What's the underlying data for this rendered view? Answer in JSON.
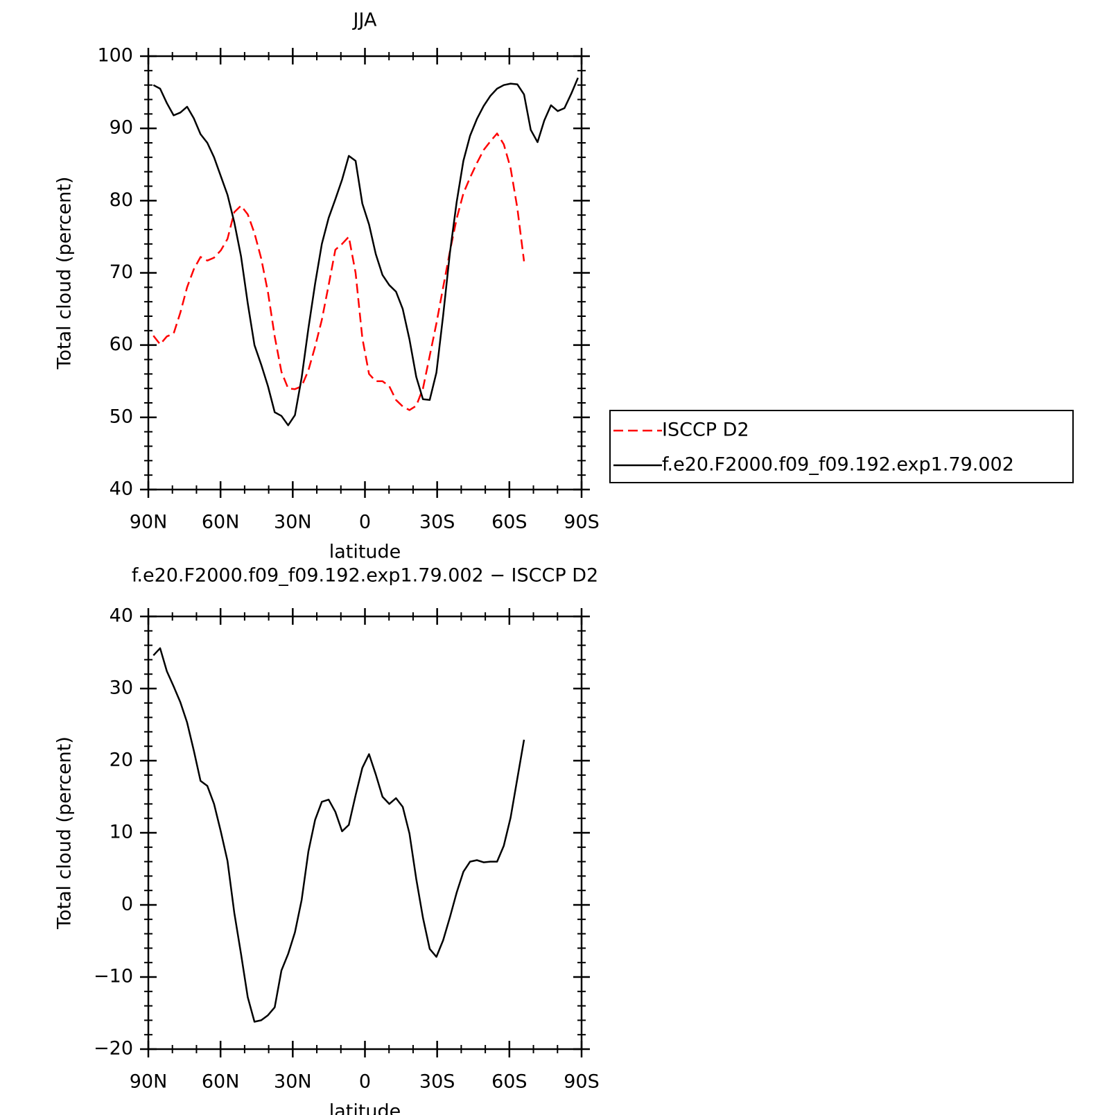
{
  "chart_data": [
    {
      "type": "line",
      "title": "JJA",
      "xlabel": "latitude",
      "ylabel": "Total cloud (percent)",
      "x": [
        87.9,
        85.1,
        82.3,
        79.5,
        76.7,
        73.9,
        71.1,
        68.3,
        65.5,
        62.7,
        59.9,
        57.1,
        54.3,
        51.5,
        48.7,
        45.9,
        43.1,
        40.3,
        37.5,
        34.7,
        31.9,
        29.1,
        26.3,
        23.5,
        20.7,
        17.9,
        15.1,
        12.3,
        9.5,
        6.7,
        3.9,
        1.1,
        -1.7,
        -4.5,
        -7.3,
        -10.1,
        -12.9,
        -15.7,
        -18.5,
        -21.3,
        -24.1,
        -26.9,
        -29.7,
        -32.5,
        -35.3,
        -38.1,
        -40.9,
        -43.7,
        -46.5,
        -49.3,
        -52.1,
        -54.9,
        -57.7,
        -60.5,
        -63.3,
        -66.1,
        -68.9,
        -71.7,
        -74.5,
        -77.3,
        -80.1,
        -82.9,
        -85.7,
        -88.5
      ],
      "series": [
        {
          "name": "ISCCP D2",
          "color": "#ff0000",
          "dashed": true,
          "values": [
            61.3,
            60.1,
            61.2,
            61.6,
            64.5,
            68.0,
            70.5,
            72.2,
            71.7,
            72.1,
            73.1,
            74.7,
            78.4,
            79.3,
            78.1,
            75.5,
            72.0,
            67.3,
            61.2,
            56.3,
            54.0,
            53.9,
            54.3,
            56.5,
            59.8,
            63.5,
            68.3,
            73.2,
            74.0,
            75.0,
            70.0,
            61.0,
            56.0,
            55.0,
            55.0,
            54.3,
            52.4,
            51.5,
            51.0,
            51.6,
            54.0,
            58.5,
            63.0,
            68.0,
            73.0,
            77.5,
            81.0,
            83.2,
            85.2,
            87.0,
            88.2,
            89.3,
            87.8,
            84.5,
            79.0,
            71.6,
            null,
            null,
            null,
            null,
            null,
            null,
            null,
            null
          ]
        },
        {
          "name": "f.e20.F2000.f09_f09.192.exp1.79.002",
          "color": "#000000",
          "dashed": false,
          "values": [
            96.0,
            95.5,
            93.5,
            91.8,
            92.2,
            93.0,
            91.4,
            89.2,
            88.0,
            86.0,
            83.4,
            80.8,
            77.0,
            72.3,
            65.8,
            60.0,
            57.3,
            54.3,
            50.7,
            50.2,
            48.9,
            50.3,
            55.5,
            62.3,
            68.5,
            74.0,
            77.6,
            80.2,
            82.9,
            86.2,
            85.5,
            79.6,
            76.7,
            72.6,
            69.7,
            68.3,
            67.4,
            65.0,
            60.8,
            55.6,
            52.5,
            52.4,
            56.2,
            64.1,
            72.8,
            79.8,
            85.5,
            89.0,
            91.3,
            93.1,
            94.5,
            95.5,
            96.0,
            96.2,
            96.1,
            94.7,
            89.8,
            88.1,
            91.1,
            93.2,
            92.4,
            92.8,
            94.8,
            97.0
          ]
        }
      ],
      "xlim": [
        90,
        -90
      ],
      "xticks": [
        {
          "value": 90,
          "label": "90N"
        },
        {
          "value": 60,
          "label": "60N"
        },
        {
          "value": 30,
          "label": "30N"
        },
        0,
        {
          "value": -30,
          "label": "30S"
        },
        {
          "value": -60,
          "label": "60S"
        },
        {
          "value": -90,
          "label": "90S"
        }
      ],
      "ylim": [
        40,
        100
      ],
      "yticks": [
        40,
        50,
        60,
        70,
        80,
        90,
        100
      ],
      "legend": "right"
    },
    {
      "type": "line",
      "title": "f.e20.F2000.f09_f09.192.exp1.79.002 − ISCCP D2",
      "xlabel": "latitude",
      "ylabel": "Total cloud (percent)",
      "x": [
        87.9,
        85.1,
        82.3,
        79.5,
        76.7,
        73.9,
        71.1,
        68.3,
        65.5,
        62.7,
        59.9,
        57.1,
        54.3,
        51.5,
        48.7,
        45.9,
        43.1,
        40.3,
        37.5,
        34.7,
        31.9,
        29.1,
        26.3,
        23.5,
        20.7,
        17.9,
        15.1,
        12.3,
        9.5,
        6.7,
        3.9,
        1.1,
        -1.7,
        -4.5,
        -7.3,
        -10.1,
        -12.9,
        -15.7,
        -18.5,
        -21.3,
        -24.1,
        -26.9,
        -29.7,
        -32.5,
        -35.3,
        -38.1,
        -40.9,
        -43.7,
        -46.5,
        -49.3,
        -52.1,
        -54.9,
        -57.7,
        -60.5,
        -63.3,
        -66.1
      ],
      "values": [
        34.6,
        35.6,
        32.4,
        30.3,
        28.1,
        25.3,
        21.4,
        17.2,
        16.5,
        14.0,
        10.2,
        6.1,
        -1.1,
        -6.8,
        -12.8,
        -16.2,
        -16.0,
        -15.3,
        -14.2,
        -9.1,
        -6.8,
        -3.8,
        0.7,
        7.4,
        11.8,
        14.3,
        14.6,
        12.9,
        10.2,
        11.1,
        15.2,
        19.0,
        20.9,
        18.1,
        15.0,
        14.0,
        14.8,
        13.6,
        9.9,
        3.6,
        -1.8,
        -6.1,
        -7.2,
        -4.9,
        -1.7,
        1.7,
        4.6,
        6.0,
        6.2,
        5.9,
        6.0,
        6.0,
        8.2,
        12.1,
        17.5,
        22.9
      ],
      "color": "#000000",
      "xlim": [
        90,
        -90
      ],
      "xticks": [
        {
          "value": 90,
          "label": "90N"
        },
        {
          "value": 60,
          "label": "60N"
        },
        {
          "value": 30,
          "label": "30N"
        },
        0,
        {
          "value": -30,
          "label": "30S"
        },
        {
          "value": -60,
          "label": "60S"
        },
        {
          "value": -90,
          "label": "90S"
        }
      ],
      "ylim": [
        -20,
        40
      ],
      "yticks": [
        {
          "value": -20,
          "label": "−20"
        },
        {
          "value": -10,
          "label": "−10"
        },
        0,
        10,
        20,
        30,
        40
      ]
    }
  ]
}
